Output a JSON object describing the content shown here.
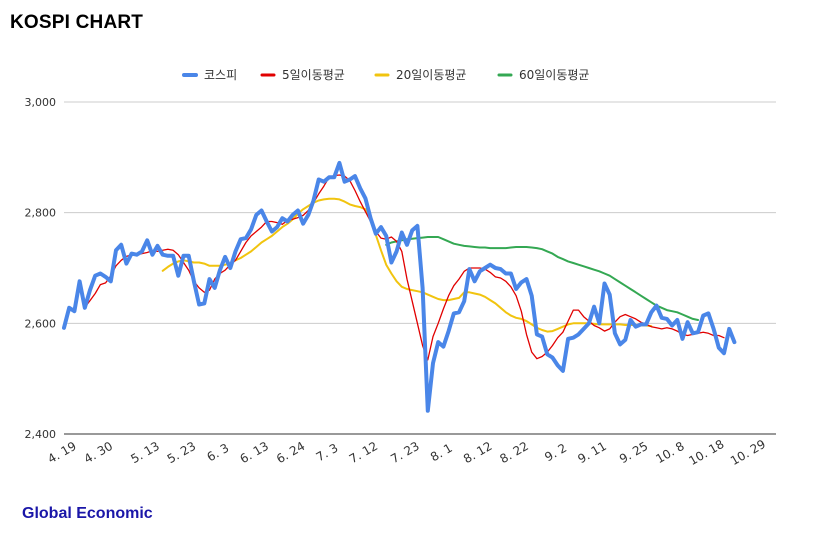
{
  "page": {
    "title": "KOSPI CHART",
    "footer": "Global Economic"
  },
  "chart_data": {
    "type": "line",
    "title": "KOSPI CHART",
    "xlabel": "",
    "ylabel": "",
    "ylim": [
      2400,
      3000
    ],
    "yticks": [
      2400,
      2600,
      2800,
      3000
    ],
    "ytick_labels": [
      "2,400",
      "2,600",
      "2,800",
      "3,000"
    ],
    "grid": true,
    "legend_position": "top",
    "x_count": 138,
    "x_tick_labels": [
      {
        "i": 0,
        "label": "4. 19"
      },
      {
        "i": 7,
        "label": "4. 30"
      },
      {
        "i": 16,
        "label": "5. 13"
      },
      {
        "i": 23,
        "label": "5. 23"
      },
      {
        "i": 30,
        "label": "6. 3"
      },
      {
        "i": 37,
        "label": "6. 13"
      },
      {
        "i": 44,
        "label": "6. 24"
      },
      {
        "i": 51,
        "label": "7. 3"
      },
      {
        "i": 58,
        "label": "7. 12"
      },
      {
        "i": 66,
        "label": "7. 23"
      },
      {
        "i": 73,
        "label": "8. 1"
      },
      {
        "i": 80,
        "label": "8. 12"
      },
      {
        "i": 87,
        "label": "8. 22"
      },
      {
        "i": 95,
        "label": "9. 2"
      },
      {
        "i": 102,
        "label": "9. 11"
      },
      {
        "i": 110,
        "label": "9. 25"
      },
      {
        "i": 117,
        "label": "10. 8"
      },
      {
        "i": 124,
        "label": "10. 18"
      },
      {
        "i": 132,
        "label": "10. 29"
      }
    ],
    "series": [
      {
        "name": "코스피",
        "color": "#4a86e8",
        "width": 4,
        "start": 0,
        "values": [
          2592,
          2628,
          2622,
          2676,
          2628,
          2660,
          2686,
          2690,
          2684,
          2676,
          2732,
          2742,
          2708,
          2726,
          2724,
          2730,
          2750,
          2724,
          2740,
          2724,
          2722,
          2722,
          2686,
          2722,
          2722,
          2676,
          2634,
          2636,
          2680,
          2664,
          2696,
          2720,
          2700,
          2730,
          2752,
          2754,
          2770,
          2796,
          2804,
          2784,
          2766,
          2774,
          2790,
          2784,
          2796,
          2804,
          2780,
          2796,
          2822,
          2860,
          2856,
          2864,
          2864,
          2890,
          2856,
          2860,
          2866,
          2844,
          2826,
          2790,
          2762,
          2774,
          2758,
          2710,
          2730,
          2764,
          2742,
          2768,
          2776,
          2664,
          2442,
          2528,
          2566,
          2558,
          2586,
          2618,
          2620,
          2640,
          2698,
          2676,
          2694,
          2700,
          2706,
          2700,
          2698,
          2690,
          2690,
          2662,
          2674,
          2680,
          2650,
          2580,
          2576,
          2544,
          2538,
          2524,
          2514,
          2572,
          2574,
          2580,
          2590,
          2600,
          2630,
          2600,
          2672,
          2652,
          2582,
          2562,
          2570,
          2606,
          2594,
          2598,
          2598,
          2620,
          2632,
          2610,
          2608,
          2596,
          2606,
          2572,
          2602,
          2582,
          2584,
          2614,
          2618,
          2590,
          2556,
          2546,
          2590,
          2566
        ]
      },
      {
        "name": "5일이동평균",
        "color": "#e10000",
        "width": 1.3,
        "start": 4,
        "values": [
          2629,
          2641,
          2654,
          2670,
          2673,
          2686,
          2704,
          2714,
          2721,
          2724,
          2724,
          2726,
          2728,
          2731,
          2730,
          2732,
          2734,
          2732,
          2724,
          2710,
          2696,
          2676,
          2664,
          2656,
          2660,
          2680,
          2690,
          2696,
          2706,
          2714,
          2730,
          2746,
          2758,
          2766,
          2774,
          2784,
          2784,
          2782,
          2779,
          2786,
          2788,
          2791,
          2795,
          2804,
          2818,
          2834,
          2848,
          2864,
          2867,
          2868,
          2866,
          2858,
          2840,
          2820,
          2802,
          2784,
          2766,
          2754,
          2752,
          2756,
          2748,
          2730,
          2680,
          2640,
          2600,
          2560,
          2534,
          2576,
          2600,
          2626,
          2650,
          2668,
          2680,
          2694,
          2700,
          2700,
          2700,
          2698,
          2692,
          2684,
          2682,
          2676,
          2666,
          2650,
          2622,
          2580,
          2548,
          2536,
          2540,
          2548,
          2560,
          2574,
          2584,
          2604,
          2624,
          2624,
          2612,
          2604,
          2596,
          2592,
          2586,
          2590,
          2602,
          2612,
          2616,
          2612,
          2608,
          2602,
          2598,
          2594,
          2592,
          2590,
          2592,
          2590,
          2586,
          2580,
          2578,
          2580,
          2582,
          2584,
          2582,
          2578,
          2578,
          2574
        ]
      },
      {
        "name": "20일이동평균",
        "color": "#f1c40f",
        "width": 2,
        "start": 19,
        "values": [
          2695,
          2702,
          2708,
          2712,
          2714,
          2712,
          2710,
          2710,
          2708,
          2704,
          2704,
          2704,
          2706,
          2708,
          2714,
          2718,
          2724,
          2730,
          2738,
          2746,
          2752,
          2758,
          2766,
          2774,
          2780,
          2788,
          2798,
          2806,
          2812,
          2818,
          2822,
          2824,
          2825,
          2825,
          2824,
          2820,
          2815,
          2812,
          2810,
          2806,
          2788,
          2760,
          2732,
          2706,
          2690,
          2676,
          2666,
          2662,
          2660,
          2658,
          2656,
          2652,
          2648,
          2644,
          2642,
          2642,
          2644,
          2646,
          2656,
          2656,
          2654,
          2652,
          2648,
          2642,
          2636,
          2628,
          2620,
          2614,
          2610,
          2608,
          2604,
          2598,
          2592,
          2588,
          2585,
          2586,
          2590,
          2594,
          2598,
          2600,
          2600,
          2600,
          2600,
          2599,
          2598,
          2598,
          2598,
          2598,
          2598,
          2597,
          2597,
          2597,
          2596,
          2596,
          2595
        ]
      },
      {
        "name": "60일이동평균",
        "color": "#34a853",
        "width": 2,
        "start": 62,
        "values": [
          2742,
          2746,
          2748,
          2750,
          2752,
          2753,
          2754,
          2755,
          2756,
          2756,
          2756,
          2752,
          2748,
          2744,
          2742,
          2740,
          2739,
          2738,
          2737,
          2737,
          2736,
          2736,
          2736,
          2736,
          2737,
          2738,
          2738,
          2738,
          2737,
          2736,
          2734,
          2730,
          2726,
          2720,
          2716,
          2712,
          2709,
          2706,
          2703,
          2700,
          2697,
          2694,
          2690,
          2686,
          2680,
          2674,
          2668,
          2662,
          2656,
          2650,
          2644,
          2638,
          2632,
          2628,
          2624,
          2622,
          2620,
          2616,
          2612,
          2608,
          2606
        ]
      }
    ]
  }
}
